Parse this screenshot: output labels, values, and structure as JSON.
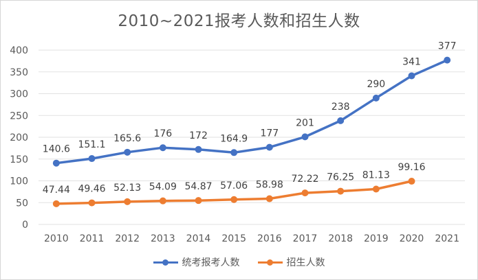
{
  "chart_data": {
    "type": "line",
    "title": "2010~2021报考人数和招生人数",
    "categories": [
      "2010",
      "2011",
      "2012",
      "2013",
      "2014",
      "2015",
      "2016",
      "2017",
      "2018",
      "2019",
      "2020",
      "2021"
    ],
    "series": [
      {
        "name": "统考报考人数",
        "color": "#4472c4",
        "values": [
          140.6,
          151.1,
          165.6,
          176,
          172,
          164.9,
          177,
          201,
          238,
          290,
          341,
          377
        ],
        "labels": [
          "140.6",
          "151.1",
          "165.6",
          "176",
          "172",
          "164.9",
          "177",
          "201",
          "238",
          "290",
          "341",
          "377"
        ]
      },
      {
        "name": "招生人数",
        "color": "#ed7d31",
        "values": [
          47.44,
          49.46,
          52.13,
          54.09,
          54.87,
          57.06,
          58.98,
          72.22,
          76.25,
          81.13,
          99.16,
          null
        ],
        "labels": [
          "47.44",
          "49.46",
          "52.13",
          "54.09",
          "54.87",
          "57.06",
          "58.98",
          "72.22",
          "76.25",
          "81.13",
          "99.16",
          ""
        ]
      }
    ],
    "ylim": [
      0,
      400
    ],
    "yticks": [
      "0",
      "50",
      "100",
      "150",
      "200",
      "250",
      "300",
      "350",
      "400"
    ],
    "grid": true,
    "legend_position": "bottom"
  }
}
